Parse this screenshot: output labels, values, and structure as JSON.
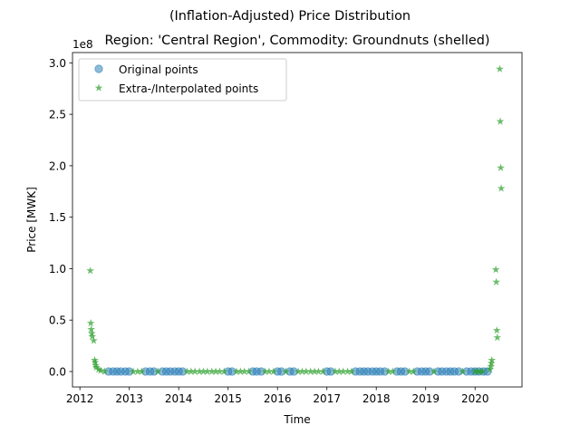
{
  "chart_data": {
    "type": "scatter",
    "suptitle": "(Inflation-Adjusted) Price Distribution",
    "title": "Region: 'Central Region', Commodity: Groundnuts (shelled)",
    "xlabel": "Time",
    "ylabel": "Price [MWK]",
    "y_offset_label": "1e8",
    "xlim": [
      2011.85,
      2020.95
    ],
    "ylim": [
      -0.15,
      3.1
    ],
    "x_ticks": [
      2012,
      2013,
      2014,
      2015,
      2016,
      2017,
      2018,
      2019,
      2020
    ],
    "x_tick_labels": [
      "2012",
      "2013",
      "2014",
      "2015",
      "2016",
      "2017",
      "2018",
      "2019",
      "2020"
    ],
    "y_ticks": [
      0.0,
      0.5,
      1.0,
      1.5,
      2.0,
      2.5,
      3.0
    ],
    "y_tick_labels": [
      "0.0",
      "0.5",
      "1.0",
      "1.5",
      "2.0",
      "2.5",
      "3.0"
    ],
    "grid": false,
    "legend_position": "upper-left",
    "series": [
      {
        "name": "Original points",
        "marker": "circle",
        "color": "#1f77b4",
        "alpha": 0.5,
        "points": [
          [
            2012.58,
            0.0
          ],
          [
            2012.67,
            0.0
          ],
          [
            2012.75,
            0.0
          ],
          [
            2012.83,
            0.0
          ],
          [
            2012.92,
            0.0
          ],
          [
            2013.0,
            0.0
          ],
          [
            2013.33,
            0.0
          ],
          [
            2013.42,
            0.0
          ],
          [
            2013.5,
            0.0
          ],
          [
            2013.67,
            0.0
          ],
          [
            2013.75,
            0.0
          ],
          [
            2013.83,
            0.0
          ],
          [
            2013.92,
            0.0
          ],
          [
            2014.0,
            0.0
          ],
          [
            2014.08,
            0.0
          ],
          [
            2015.0,
            0.0
          ],
          [
            2015.08,
            0.0
          ],
          [
            2015.5,
            0.0
          ],
          [
            2015.58,
            0.0
          ],
          [
            2015.67,
            0.0
          ],
          [
            2016.0,
            0.0
          ],
          [
            2016.08,
            0.0
          ],
          [
            2016.25,
            0.0
          ],
          [
            2016.33,
            0.0
          ],
          [
            2017.0,
            0.0
          ],
          [
            2017.08,
            0.0
          ],
          [
            2017.58,
            0.0
          ],
          [
            2017.67,
            0.0
          ],
          [
            2017.75,
            0.0
          ],
          [
            2017.83,
            0.0
          ],
          [
            2017.92,
            0.0
          ],
          [
            2018.0,
            0.0
          ],
          [
            2018.08,
            0.0
          ],
          [
            2018.17,
            0.0
          ],
          [
            2018.42,
            0.0
          ],
          [
            2018.5,
            0.0
          ],
          [
            2018.58,
            0.0
          ],
          [
            2018.83,
            0.0
          ],
          [
            2018.92,
            0.0
          ],
          [
            2019.0,
            0.0
          ],
          [
            2019.08,
            0.0
          ],
          [
            2019.25,
            0.0
          ],
          [
            2019.33,
            0.0
          ],
          [
            2019.42,
            0.0
          ],
          [
            2019.5,
            0.0
          ],
          [
            2019.58,
            0.0
          ],
          [
            2019.67,
            0.0
          ],
          [
            2019.83,
            0.0
          ],
          [
            2019.92,
            0.0
          ],
          [
            2020.0,
            0.0
          ],
          [
            2020.08,
            0.0
          ],
          [
            2020.17,
            0.0
          ],
          [
            2020.25,
            0.0
          ]
        ]
      },
      {
        "name": "Extra-/Interpolated points",
        "marker": "star",
        "color": "#2ca02c",
        "alpha": 0.7,
        "points": [
          [
            2012.21,
            0.98
          ],
          [
            2012.22,
            0.47
          ],
          [
            2012.23,
            0.41
          ],
          [
            2012.24,
            0.37
          ],
          [
            2012.25,
            0.34
          ],
          [
            2012.28,
            0.3
          ],
          [
            2012.3,
            0.11
          ],
          [
            2012.31,
            0.09
          ],
          [
            2012.32,
            0.06
          ],
          [
            2012.33,
            0.04
          ],
          [
            2012.38,
            0.02
          ],
          [
            2012.42,
            0.01
          ],
          [
            2012.5,
            0.0
          ],
          [
            2013.08,
            0.0
          ],
          [
            2013.17,
            0.0
          ],
          [
            2013.25,
            0.0
          ],
          [
            2013.58,
            0.0
          ],
          [
            2014.17,
            0.0
          ],
          [
            2014.25,
            0.0
          ],
          [
            2014.33,
            0.0
          ],
          [
            2014.42,
            0.0
          ],
          [
            2014.5,
            0.0
          ],
          [
            2014.58,
            0.0
          ],
          [
            2014.67,
            0.0
          ],
          [
            2014.75,
            0.0
          ],
          [
            2014.83,
            0.0
          ],
          [
            2014.92,
            0.0
          ],
          [
            2015.17,
            0.0
          ],
          [
            2015.25,
            0.0
          ],
          [
            2015.33,
            0.0
          ],
          [
            2015.42,
            0.0
          ],
          [
            2015.75,
            0.0
          ],
          [
            2015.83,
            0.0
          ],
          [
            2015.92,
            0.0
          ],
          [
            2016.17,
            0.0
          ],
          [
            2016.42,
            0.0
          ],
          [
            2016.5,
            0.0
          ],
          [
            2016.58,
            0.0
          ],
          [
            2016.67,
            0.0
          ],
          [
            2016.75,
            0.0
          ],
          [
            2016.83,
            0.0
          ],
          [
            2016.92,
            0.0
          ],
          [
            2017.17,
            0.0
          ],
          [
            2017.25,
            0.0
          ],
          [
            2017.33,
            0.0
          ],
          [
            2017.42,
            0.0
          ],
          [
            2017.5,
            0.0
          ],
          [
            2018.25,
            0.0
          ],
          [
            2018.33,
            0.0
          ],
          [
            2018.67,
            0.0
          ],
          [
            2018.75,
            0.0
          ],
          [
            2019.17,
            0.0
          ],
          [
            2019.75,
            0.0
          ],
          [
            2020.0,
            0.0
          ],
          [
            2020.05,
            0.0
          ],
          [
            2020.1,
            0.0
          ],
          [
            2020.15,
            0.0
          ],
          [
            2020.3,
            0.02
          ],
          [
            2020.32,
            0.05
          ],
          [
            2020.33,
            0.08
          ],
          [
            2020.34,
            0.11
          ],
          [
            2020.42,
            0.99
          ],
          [
            2020.43,
            0.87
          ],
          [
            2020.44,
            0.4
          ],
          [
            2020.45,
            0.33
          ],
          [
            2020.5,
            2.94
          ],
          [
            2020.51,
            2.43
          ],
          [
            2020.52,
            1.98
          ],
          [
            2020.53,
            1.78
          ]
        ]
      }
    ]
  }
}
